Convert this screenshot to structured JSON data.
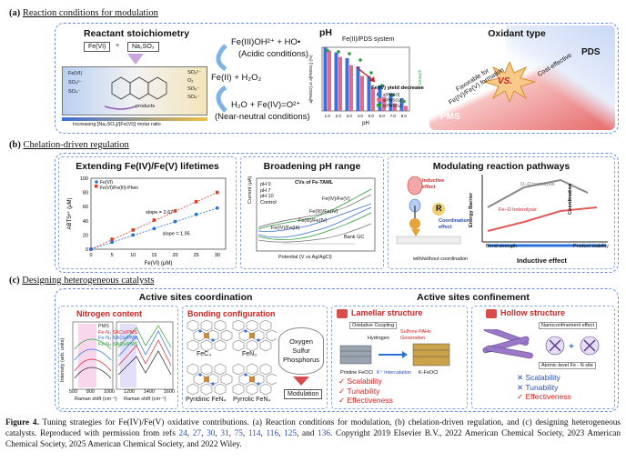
{
  "sections": {
    "a": {
      "label": "(a)",
      "title": "Reaction conditions for modulation"
    },
    "b": {
      "label": "(b)",
      "title": "Chelation-driven regulation"
    },
    "c": {
      "label": "(c)",
      "title": "Designing heterogeneous catalysts"
    }
  },
  "panel_a": {
    "stoich_title": "Reactant stoichiometry",
    "fevi": "Fe(VI)",
    "plus": "+",
    "na2so3": "Na₂SO₃",
    "left_col": [
      "Fe(VI)",
      "SO₃²⁻",
      "SO₄⁻"
    ],
    "right_col": [
      "SO₃²⁻",
      "O₂",
      "SO₅⁻",
      "SO₄⁻"
    ],
    "probe": "probe",
    "product": "products",
    "axis_text": "Increasing [Na₂SO₃]/[Fe(VI)] molar ratio",
    "rxn_acid_species": "Fe(III)OH²⁺ + HO•",
    "rxn_acid_cond": "(Acidic conditions)",
    "rxn_reactant": "Fe(II) + H₂O₂",
    "rxn_neutral_species": "H₂O + Fe(IV)=O²⁺",
    "rxn_neutral_cond": "(Near-neutral conditions)",
    "ph_title": "pH",
    "ph_subtitle": "Fe(II)/PDS system",
    "ph_annot": "Fe(IV) yield decreased",
    "ph_legend": [
      "a[PMSO]",
      "a[PMSO₂]",
      "η[PMSO₂]"
    ],
    "oxidant_title": "Oxidant type",
    "pds": "PDS",
    "pms": "PMS",
    "vs": "VS.",
    "cost": "Cost-effective",
    "favor": "Favorable for Fe(IV)/Fe(V) formation"
  },
  "panel_b": {
    "lifetime_title": "Extending Fe(IV)/Fe(V) lifetimes",
    "ph_range_title": "Broadening pH range",
    "pathways_title": "Modulating reaction pathways",
    "cv_title": "CVs of Fe-TAML",
    "cv_legend": [
      "pH 0",
      "pH 7",
      "pH 10",
      "Control"
    ],
    "cv_labels": [
      "Fe(IV)/Fe(V)",
      "Fe(III)/Fe(IV)",
      "Fe(III)/Fe(IV)",
      "Fe(IV)/Fe(III)",
      "Bank GC"
    ],
    "cv_xlabel": "Potential (V vs Ag/AgCl)",
    "cv_ylabel": "Current (μA)",
    "coord_effect": "Coordination effect",
    "inductive_effect": "Inductive effect",
    "inductive_effect2": "Inductive effect",
    "energy_barrier": "Energy Barrier",
    "coordination": "Coordination",
    "oo_homolysis": "O–O homolysis",
    "feo_heterolysis": "Fe–O heterolysis",
    "bond_strength": "Bond strength",
    "product_stability": "Product stability",
    "withwithout": "with/without coordination",
    "r_label": "R"
  },
  "chart_data": {
    "type": "scatter",
    "title": "Extending Fe(IV)/Fe(V) lifetimes",
    "xlabel": "Fe(VI) (μM)",
    "ylabel": "ABTS•⁺ (μM)",
    "xlim": [
      0,
      32
    ],
    "ylim": [
      0,
      100
    ],
    "xticks": [
      0,
      5,
      10,
      15,
      20,
      25,
      30
    ],
    "yticks": [
      0,
      20,
      40,
      60,
      80,
      100
    ],
    "series": [
      {
        "name": "Fe(VI)/Fe(III)-Phen",
        "x": [
          0,
          5,
          10,
          15,
          20,
          25,
          30
        ],
        "y": [
          0,
          14,
          27,
          41,
          54,
          67,
          80
        ],
        "slope_label": "slope = 2.67",
        "color": "#d6402a"
      },
      {
        "name": "Fe(VI)",
        "x": [
          0,
          5,
          10,
          15,
          20,
          25,
          30
        ],
        "y": [
          0,
          10,
          20,
          29,
          39,
          49,
          58
        ],
        "slope_label": "slope = 1.95",
        "color": "#2a73d6"
      }
    ]
  },
  "ph_chart": {
    "categories": [
      "1.0",
      "2.0",
      "3.0",
      "4.0",
      "5.0",
      "6.0",
      "7.0",
      "8.0"
    ],
    "a_pmso": [
      100,
      92,
      83,
      70,
      55,
      40,
      28,
      20
    ],
    "a_pmso2": [
      95,
      85,
      72,
      55,
      36,
      22,
      12,
      8
    ],
    "eta_pmso2": [
      95,
      93,
      90,
      80,
      60,
      40,
      25,
      15
    ],
    "xlabel": "pH",
    "ylabel_left": "a[PMSO] or a[PMSO₂] (%)",
    "ylabel_right": "η(PMSO₂)"
  },
  "panel_c": {
    "sites_title": "Active sites coordination",
    "confine_title": "Active sites confinement",
    "nitrogen_title": "Nitrogen content",
    "nitro_legend": [
      "PMS",
      "Fe-N₁ SACs/PMS",
      "Fe-N₂ SACs/PMS",
      "Fe-N₄ SACs/PMS"
    ],
    "nitro_xlabel": "Raman shift (cm⁻¹)",
    "nitro_ylabel": "Intensity (arb. units)",
    "nitro_xticks": [
      "500",
      "800",
      "1000",
      "1200",
      "1400",
      "1600"
    ],
    "bonding_title": "Bonding configuration",
    "fec4": "FeC₄",
    "fen3": "FeN₃",
    "pyridinic": "Pyridinic FeN₄",
    "pyrrolic": "Pyrrolic FeN₄",
    "hetero": [
      "Oxygen",
      "Sulfur",
      "Phosphorus"
    ],
    "modulation": "Modulation",
    "lamellar_title": "Lamellar structure",
    "hollow_title": "Hollow structure",
    "lamellar_checks": [
      "Scalability",
      "Tunability",
      "Effectiveness"
    ],
    "hollow_checks": [
      "Scalability",
      "Tunability",
      "Effectiveness"
    ],
    "nanoconf": "Nanoconfinement effect",
    "atomic": "Atomic-level Fe - N site",
    "pristine": "Pristine FeOCl",
    "kfeocl": "K-FeOCl",
    "kintercal": "K⁺ Intercalation",
    "oxidative": "Oxidative Coupling",
    "sulfone": "Sulfone PAHs",
    "sulfone_gen": "Generation",
    "hydrogen": "Hydrogen"
  },
  "caption": {
    "fig": "Figure 4.",
    "text1": " Tuning strategies for Fe(IV)/Fe(V) oxidative contributions. (a) Reaction conditions for modulation, (b) chelation-driven regulation, and (c) designing heterogeneous catalysts. Reproduced with permission from refs ",
    "refs": [
      "24",
      "27",
      "30",
      "31",
      "75",
      "114",
      "116",
      "125",
      "136"
    ],
    "text2": ". Copyright 2019 Elsevier B.V., 2022 American Chemical Society, 2023 American Chemical Society, 2025 American Chemical Society, and 2022 Wiley."
  }
}
